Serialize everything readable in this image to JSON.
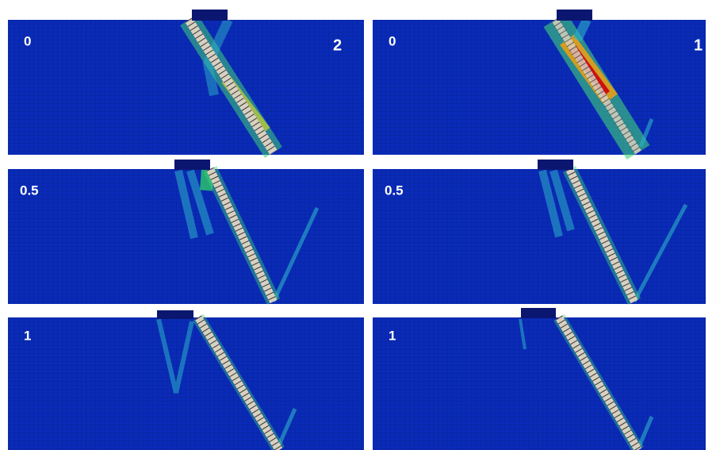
{
  "panels": [
    {
      "labels": [
        "0",
        "2"
      ]
    },
    {
      "labels": [
        "0",
        "1"
      ]
    },
    {
      "labels": [
        "0.5"
      ]
    },
    {
      "labels": [
        "0.5"
      ]
    },
    {
      "labels": [
        "1"
      ]
    },
    {
      "labels": [
        "1"
      ]
    }
  ]
}
